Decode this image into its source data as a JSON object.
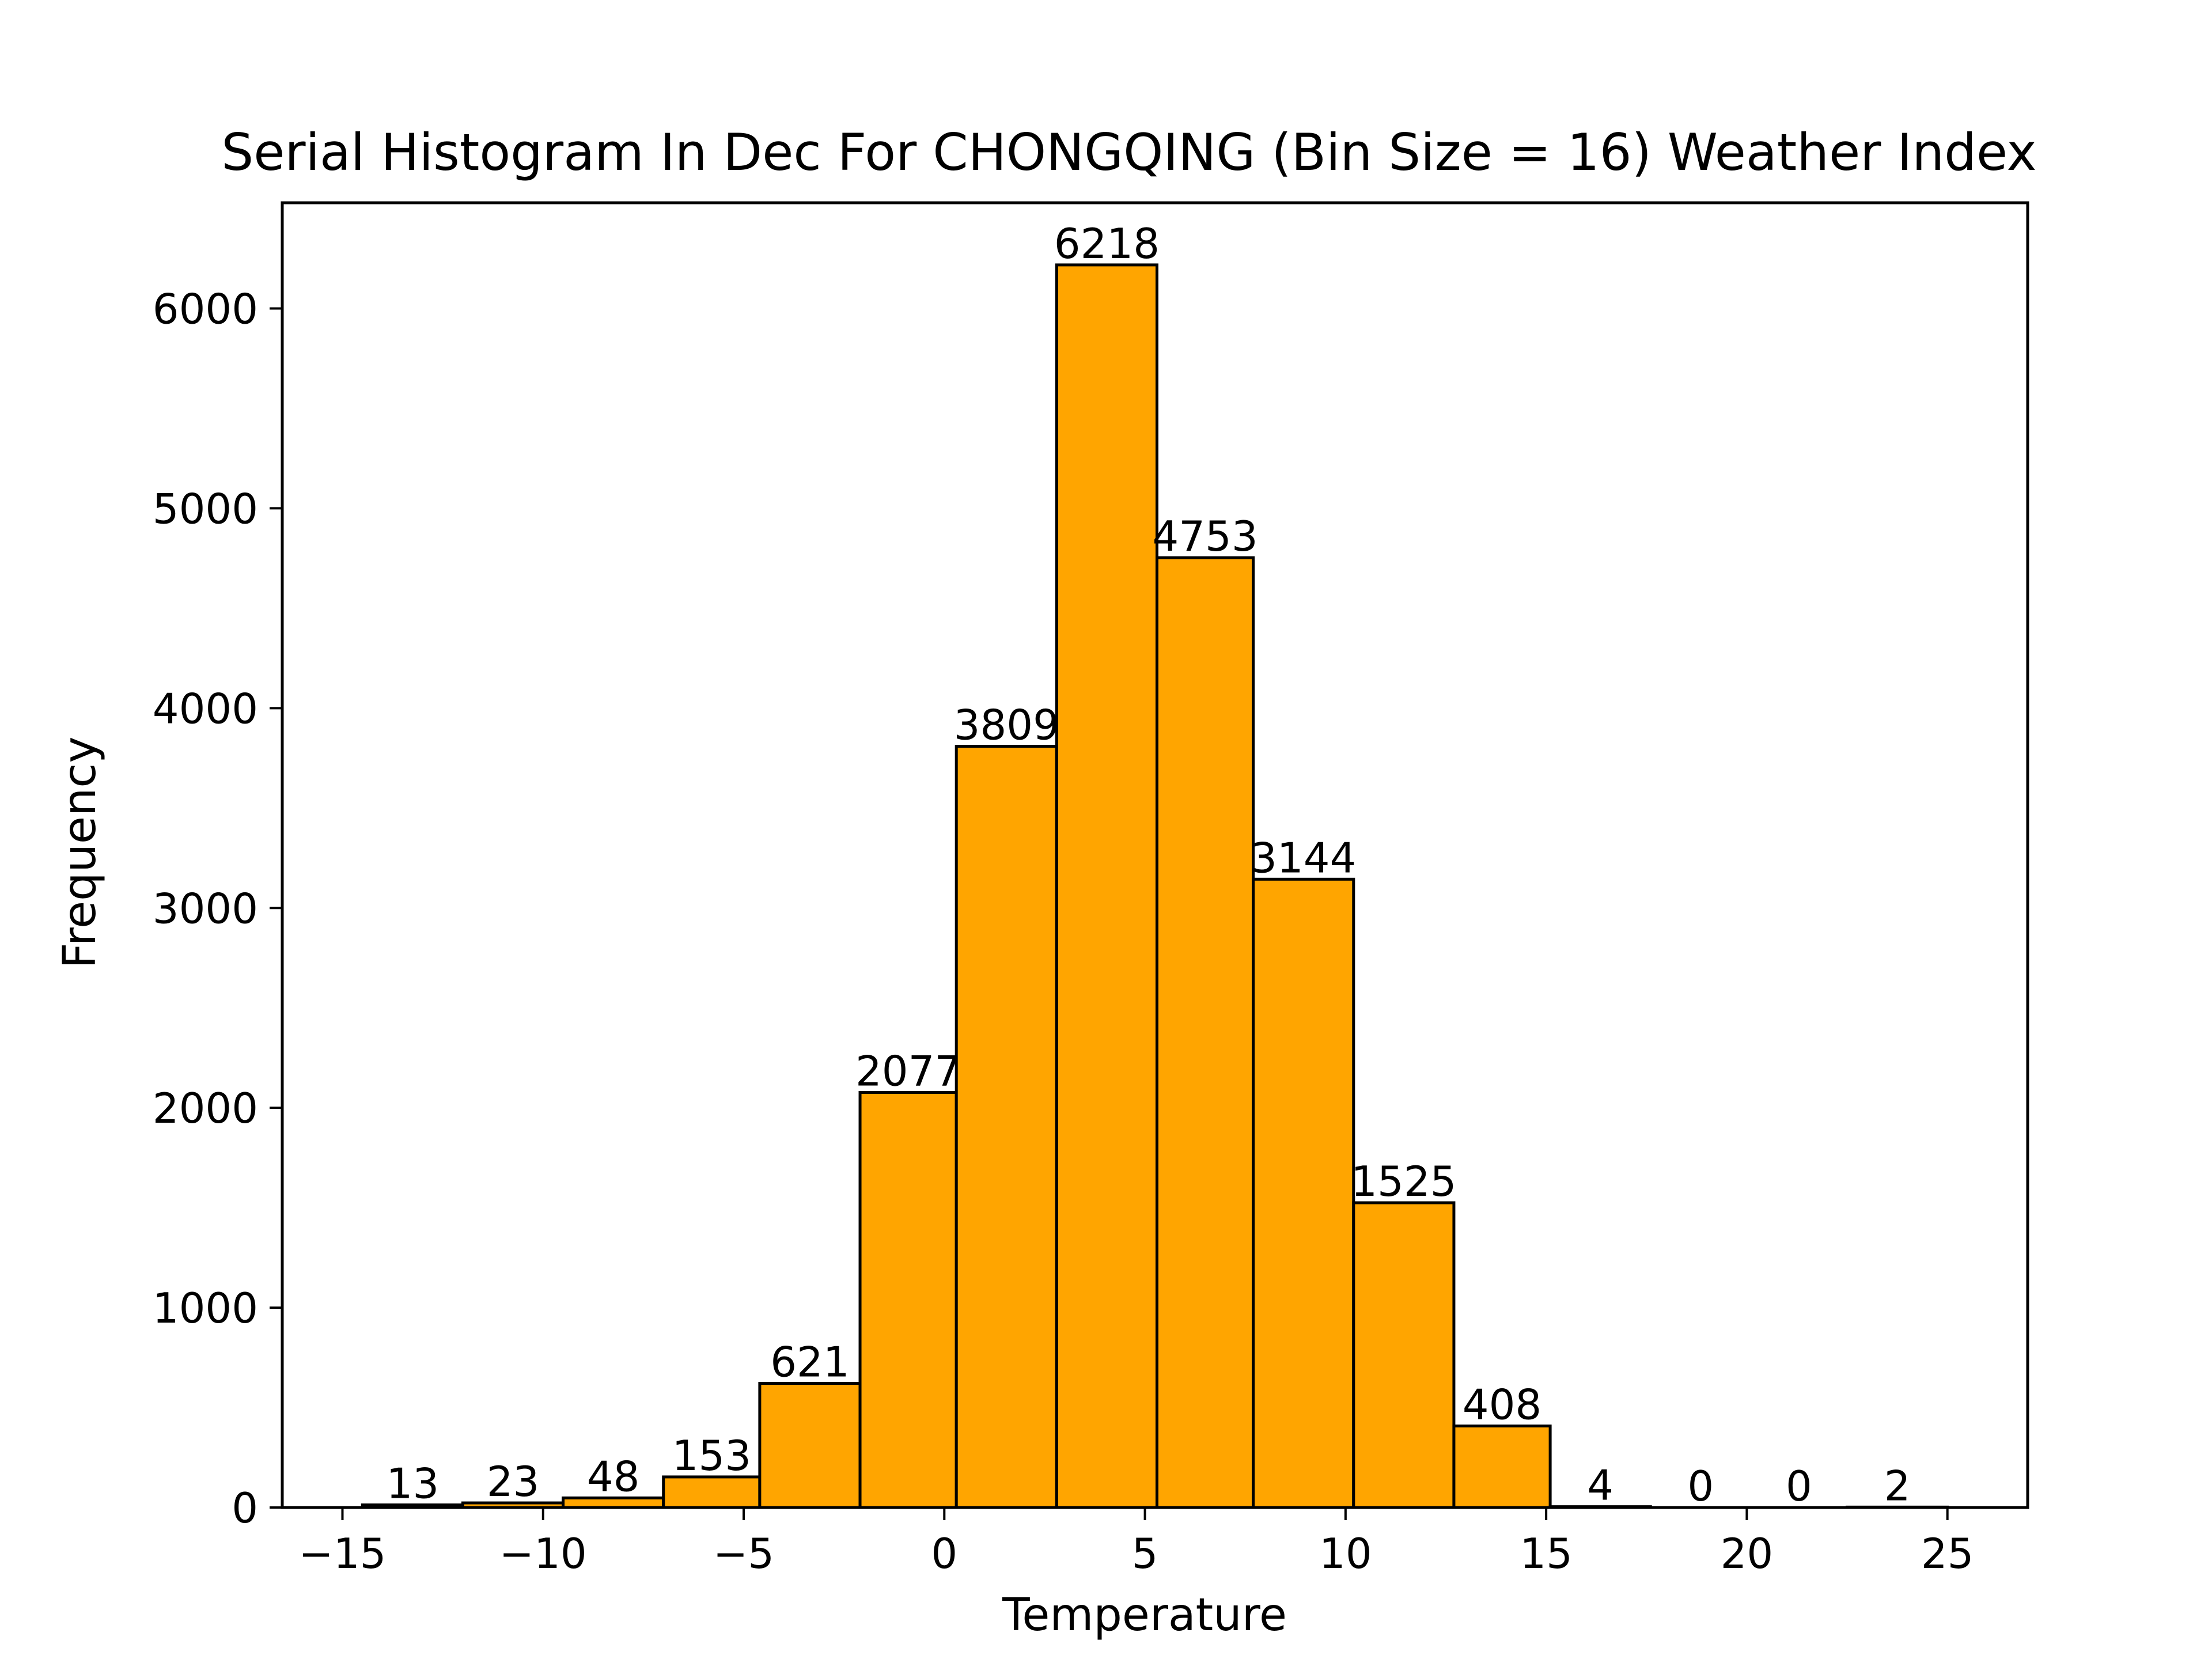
{
  "chart_data": {
    "type": "bar",
    "title": "Serial Histogram In Dec For CHONGQING (Bin Size = 16) Weather Index",
    "xlabel": "Temperature",
    "ylabel": "Frequency",
    "bins": [
      {
        "x0": -14.5,
        "x1": -12.0,
        "value": 13
      },
      {
        "x0": -12.0,
        "x1": -9.5,
        "value": 23
      },
      {
        "x0": -9.5,
        "x1": -7.0,
        "value": 48
      },
      {
        "x0": -7.0,
        "x1": -4.6,
        "value": 153
      },
      {
        "x0": -4.6,
        "x1": -2.1,
        "value": 621
      },
      {
        "x0": -2.1,
        "x1": 0.3,
        "value": 2077
      },
      {
        "x0": 0.3,
        "x1": 2.8,
        "value": 3809
      },
      {
        "x0": 2.8,
        "x1": 5.3,
        "value": 6218
      },
      {
        "x0": 5.3,
        "x1": 7.7,
        "value": 4753
      },
      {
        "x0": 7.7,
        "x1": 10.2,
        "value": 3144
      },
      {
        "x0": 10.2,
        "x1": 12.7,
        "value": 1525
      },
      {
        "x0": 12.7,
        "x1": 15.1,
        "value": 408
      },
      {
        "x0": 15.1,
        "x1": 17.6,
        "value": 4
      },
      {
        "x0": 17.6,
        "x1": 20.1,
        "value": 0
      },
      {
        "x0": 20.1,
        "x1": 22.5,
        "value": 0
      },
      {
        "x0": 22.5,
        "x1": 25.0,
        "value": 2
      }
    ],
    "xlim": [
      -16.5,
      27.0
    ],
    "ylim": [
      0,
      6529
    ],
    "xticks": [
      {
        "value": -15,
        "label": "−15"
      },
      {
        "value": -10,
        "label": "−10"
      },
      {
        "value": -5,
        "label": "−5"
      },
      {
        "value": 0,
        "label": "0"
      },
      {
        "value": 5,
        "label": "5"
      },
      {
        "value": 10,
        "label": "10"
      },
      {
        "value": 15,
        "label": "15"
      },
      {
        "value": 20,
        "label": "20"
      },
      {
        "value": 25,
        "label": "25"
      }
    ],
    "yticks": [
      {
        "value": 0,
        "label": "0"
      },
      {
        "value": 1000,
        "label": "1000"
      },
      {
        "value": 2000,
        "label": "2000"
      },
      {
        "value": 3000,
        "label": "3000"
      },
      {
        "value": 4000,
        "label": "4000"
      },
      {
        "value": 5000,
        "label": "5000"
      },
      {
        "value": 6000,
        "label": "6000"
      }
    ],
    "grid": false,
    "legend": "none",
    "bar_color": "#ffa500",
    "edge_color": "#000000"
  }
}
